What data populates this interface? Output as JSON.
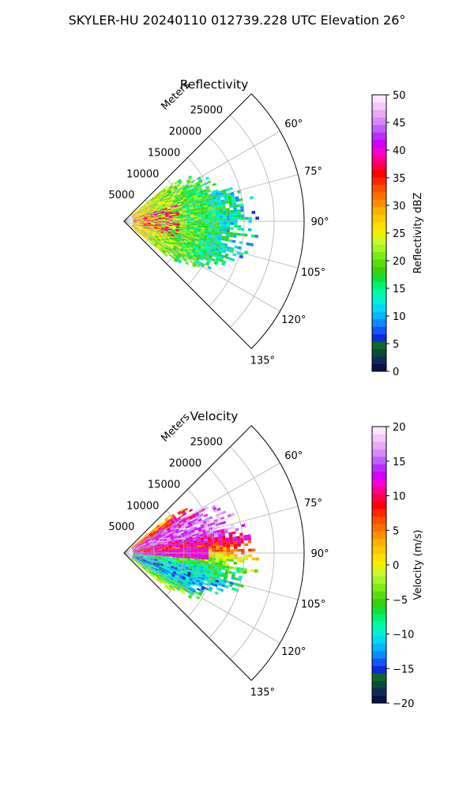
{
  "figure": {
    "suptitle": "SKYLER-HU  20240110  012739.228 UTC Elevation 26°"
  },
  "chart_data": [
    {
      "type": "heatmap",
      "projection": "polar-sector",
      "title": "Reflectivity",
      "radial_axis_label": "Meters",
      "radial_ticks": [
        5000,
        10000,
        15000,
        20000,
        25000
      ],
      "radial_tick_labels": [
        "5000",
        "10000",
        "15000",
        "20000",
        "25000"
      ],
      "rmax": 30000,
      "angle_ticks_deg": [
        60,
        75,
        90,
        105,
        120,
        135
      ],
      "angle_tick_labels": [
        "60°",
        "75°",
        "90°",
        "105°",
        "120°",
        "135°"
      ],
      "sector_deg": [
        45,
        135
      ],
      "grid": true,
      "colorbar": {
        "label": "Reflectivity dBZ",
        "vmin": 0,
        "vmax": 50,
        "ticks": [
          0,
          5,
          10,
          15,
          20,
          25,
          30,
          35,
          40,
          45,
          50
        ],
        "tick_labels": [
          "0",
          "5",
          "10",
          "15",
          "20",
          "25",
          "30",
          "35",
          "40",
          "45",
          "50"
        ],
        "colors": [
          "#0a1248",
          "#0e2a5a",
          "#0a4a3a",
          "#0c6a2e",
          "#0c2ad8",
          "#1256ff",
          "#0a8cff",
          "#08b4ff",
          "#00d8f4",
          "#00f0d0",
          "#00f8a8",
          "#00f070",
          "#10e030",
          "#3cd010",
          "#58dc10",
          "#7cec18",
          "#a4f428",
          "#ccf830",
          "#f0f000",
          "#fce000",
          "#fcc800",
          "#fcb000",
          "#fc9000",
          "#fc7000",
          "#fc5000",
          "#fc2800",
          "#fc0000",
          "#fc0048",
          "#fc0090",
          "#f800d8",
          "#d000fc",
          "#b830fc",
          "#c060fc",
          "#d888f8",
          "#e8a8f4",
          "#f4c8fc",
          "#fbe6fd"
        ]
      },
      "field_description": "range gates out to about 22000 m, between about 50° and 130°"
    },
    {
      "type": "heatmap",
      "projection": "polar-sector",
      "title": "Velocity",
      "radial_axis_label": "Meters",
      "radial_ticks": [
        5000,
        10000,
        15000,
        20000,
        25000
      ],
      "radial_tick_labels": [
        "5000",
        "10000",
        "15000",
        "20000",
        "25000"
      ],
      "rmax": 30000,
      "angle_ticks_deg": [
        60,
        75,
        90,
        105,
        120,
        135
      ],
      "angle_tick_labels": [
        "60°",
        "75°",
        "90°",
        "105°",
        "120°",
        "135°"
      ],
      "sector_deg": [
        45,
        135
      ],
      "grid": true,
      "colorbar": {
        "label": "Velocity (m/s)",
        "vmin": -20,
        "vmax": 20,
        "ticks": [
          -20,
          -15,
          -10,
          -5,
          0,
          5,
          10,
          15,
          20
        ],
        "tick_labels": [
          "−20",
          "−15",
          "−10",
          "−5",
          "0",
          "5",
          "10",
          "15",
          "20"
        ],
        "colors": [
          "#0a1248",
          "#0e2a5a",
          "#0a4a3a",
          "#0c6a2e",
          "#0c2ad8",
          "#1256ff",
          "#0a8cff",
          "#08b4ff",
          "#00d8f4",
          "#00f0d0",
          "#00f8a8",
          "#00f070",
          "#10e030",
          "#3cd010",
          "#58dc10",
          "#7cec18",
          "#a4f428",
          "#ccf830",
          "#f0f000",
          "#fce000",
          "#fcc800",
          "#fcb000",
          "#fc9000",
          "#fc7000",
          "#fc5000",
          "#fc2800",
          "#fc0000",
          "#fc0048",
          "#fc0090",
          "#f800d8",
          "#d000fc",
          "#b830fc",
          "#c060fc",
          "#d888f8",
          "#e8a8f4",
          "#f4c8fc",
          "#fbe6fd"
        ]
      },
      "field_description": "range gates out to about 22000 m, between about 50° and 130°"
    }
  ]
}
